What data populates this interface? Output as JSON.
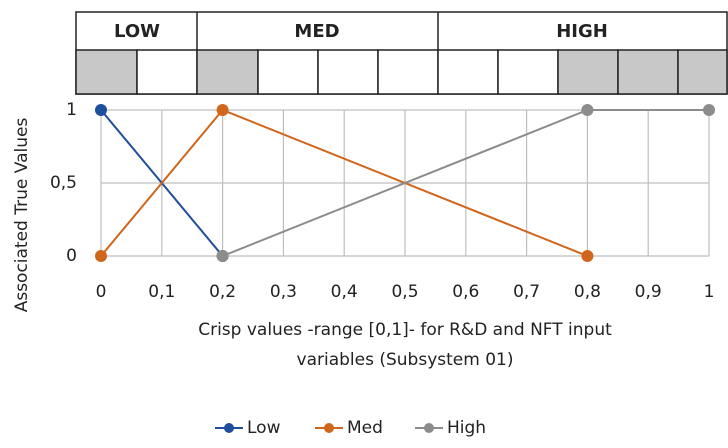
{
  "header": {
    "labels": [
      "LOW",
      "MED",
      "HIGH"
    ]
  },
  "chart_data": {
    "type": "line",
    "ylabel": "Associated True Values",
    "xlabel": [
      "Crisp values -range [0,1]- for R&D and NFT input",
      "variables (Subsystem 01)"
    ],
    "x": [
      0,
      0.2,
      0.8,
      1
    ],
    "series": [
      {
        "name": "Low",
        "color": "#1f4e9c",
        "values": [
          1,
          0,
          null,
          null
        ]
      },
      {
        "name": "Med",
        "color": "#d0661c",
        "values": [
          0,
          1,
          0,
          null
        ]
      },
      {
        "name": "High",
        "color": "#8c8c8c",
        "values": [
          null,
          0,
          1,
          1
        ]
      }
    ],
    "xlim": [
      0,
      1
    ],
    "ylim": [
      0,
      1
    ],
    "xticks": [
      0,
      {
        "value": 0.1,
        "label": "0,1"
      },
      {
        "value": 0.2,
        "label": "0,2"
      },
      {
        "value": 0.3,
        "label": "0,3"
      },
      {
        "value": 0.4,
        "label": "0,4"
      },
      {
        "value": 0.5,
        "label": "0,5"
      },
      {
        "value": 0.6,
        "label": "0,6"
      },
      {
        "value": 0.7,
        "label": "0,7"
      },
      {
        "value": 0.8,
        "label": "0,8"
      },
      {
        "value": 0.9,
        "label": "0,9"
      },
      1
    ],
    "yticks": [
      0,
      {
        "value": 0.5,
        "label": "0,5"
      },
      1
    ],
    "grid": true,
    "legend": "bottom"
  }
}
